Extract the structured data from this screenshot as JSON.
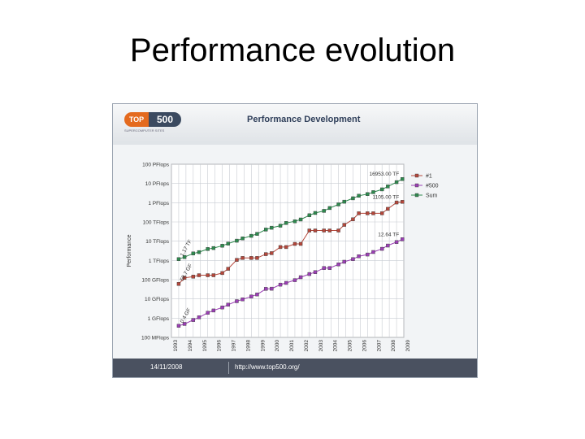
{
  "slide": {
    "title": "Performance evolution"
  },
  "header": {
    "logo_top": "TOP",
    "logo_num": "500",
    "logo_sub": "SUPERCOMPUTER SITES",
    "title": "Performance Development"
  },
  "footer": {
    "date": "14/11/2008",
    "url": "http://www.top500.org/"
  },
  "colors": {
    "n1": "#b5473b",
    "n500": "#9b3fb5",
    "sum": "#2f8a4f",
    "watermark": "#d6dbe2"
  },
  "chart_data": {
    "type": "line",
    "ylabel": "Performance",
    "y_scale": "log",
    "y_ticks": [
      {
        "value": 0.1,
        "label": "100 MFlops"
      },
      {
        "value": 1,
        "label": "1 GFlops"
      },
      {
        "value": 10,
        "label": "10 GFlops"
      },
      {
        "value": 100,
        "label": "100 GFlops"
      },
      {
        "value": 1000,
        "label": "1 TFlops"
      },
      {
        "value": 10000,
        "label": "10 TFlops"
      },
      {
        "value": 100000,
        "label": "100 TFlops"
      },
      {
        "value": 1000000,
        "label": "1 PFlops"
      },
      {
        "value": 10000000,
        "label": "10 PFlops"
      },
      {
        "value": 100000000,
        "label": "100 PFlops"
      }
    ],
    "ylim": [
      0.1,
      100000000
    ],
    "xlim": [
      1993,
      2009
    ],
    "x_ticks": [
      "1993",
      "1994",
      "1995",
      "1996",
      "1997",
      "1998",
      "1999",
      "2000",
      "2001",
      "2002",
      "2003",
      "2004",
      "2005",
      "2006",
      "2007",
      "2008",
      "2009"
    ],
    "grid": true,
    "legend": "right",
    "series": [
      {
        "name": "#1",
        "key": "n1",
        "points": [
          [
            1993.5,
            59.7
          ],
          [
            1993.9,
            124
          ],
          [
            1994.5,
            143
          ],
          [
            1994.9,
            170
          ],
          [
            1995.5,
            170
          ],
          [
            1995.9,
            170
          ],
          [
            1996.5,
            220
          ],
          [
            1996.9,
            368
          ],
          [
            1997.5,
            1068
          ],
          [
            1997.9,
            1338
          ],
          [
            1998.5,
            1338
          ],
          [
            1998.9,
            1338
          ],
          [
            1999.5,
            2121
          ],
          [
            1999.9,
            2379
          ],
          [
            2000.5,
            4938
          ],
          [
            2000.9,
            4938
          ],
          [
            2001.5,
            7226
          ],
          [
            2001.9,
            7226
          ],
          [
            2002.5,
            35860
          ],
          [
            2002.9,
            35860
          ],
          [
            2003.5,
            35860
          ],
          [
            2003.9,
            35860
          ],
          [
            2004.5,
            35860
          ],
          [
            2004.9,
            70720
          ],
          [
            2005.5,
            136800
          ],
          [
            2005.9,
            280600
          ],
          [
            2006.5,
            280600
          ],
          [
            2006.9,
            280600
          ],
          [
            2007.5,
            280600
          ],
          [
            2007.9,
            478200
          ],
          [
            2008.5,
            1026000
          ],
          [
            2008.9,
            1105000
          ]
        ]
      },
      {
        "name": "#500",
        "key": "n500",
        "points": [
          [
            1993.5,
            0.4
          ],
          [
            1993.9,
            0.5
          ],
          [
            1994.5,
            0.8
          ],
          [
            1994.9,
            1.1
          ],
          [
            1995.5,
            1.9
          ],
          [
            1995.9,
            2.5
          ],
          [
            1996.5,
            3.6
          ],
          [
            1996.9,
            5.0
          ],
          [
            1997.5,
            7.6
          ],
          [
            1997.9,
            9.5
          ],
          [
            1998.5,
            13.4
          ],
          [
            1998.9,
            17.1
          ],
          [
            1999.5,
            33.1
          ],
          [
            1999.9,
            33.9
          ],
          [
            2000.5,
            55.1
          ],
          [
            2000.9,
            67.8
          ],
          [
            2001.5,
            94.3
          ],
          [
            2001.9,
            134
          ],
          [
            2002.5,
            196
          ],
          [
            2002.9,
            245
          ],
          [
            2003.5,
            403
          ],
          [
            2003.9,
            403
          ],
          [
            2004.5,
            624
          ],
          [
            2004.9,
            851
          ],
          [
            2005.5,
            1166
          ],
          [
            2005.9,
            1646
          ],
          [
            2006.5,
            2026
          ],
          [
            2006.9,
            2737
          ],
          [
            2007.5,
            4005
          ],
          [
            2007.9,
            5929
          ],
          [
            2008.5,
            9000
          ],
          [
            2008.9,
            12640
          ]
        ]
      },
      {
        "name": "Sum",
        "key": "sum",
        "points": [
          [
            1993.5,
            1170
          ],
          [
            1993.9,
            1500
          ],
          [
            1994.5,
            2300
          ],
          [
            1994.9,
            2700
          ],
          [
            1995.5,
            3900
          ],
          [
            1995.9,
            4400
          ],
          [
            1996.5,
            5800
          ],
          [
            1996.9,
            7500
          ],
          [
            1997.5,
            10600
          ],
          [
            1997.9,
            14000
          ],
          [
            1998.5,
            19000
          ],
          [
            1998.9,
            24000
          ],
          [
            1999.5,
            40000
          ],
          [
            1999.9,
            50000
          ],
          [
            2000.5,
            64000
          ],
          [
            2000.9,
            88000
          ],
          [
            2001.5,
            108000
          ],
          [
            2001.9,
            134000
          ],
          [
            2002.5,
            222000
          ],
          [
            2002.9,
            293000
          ],
          [
            2003.5,
            375000
          ],
          [
            2003.9,
            528000
          ],
          [
            2004.5,
            813000
          ],
          [
            2004.9,
            1127000
          ],
          [
            2005.5,
            1690000
          ],
          [
            2005.9,
            2300000
          ],
          [
            2006.5,
            2790000
          ],
          [
            2006.9,
            3530000
          ],
          [
            2007.5,
            4920000
          ],
          [
            2007.9,
            6970000
          ],
          [
            2008.5,
            11700000
          ],
          [
            2008.9,
            16953000
          ]
        ]
      }
    ],
    "annotations": [
      {
        "text": "1.17 TF",
        "series": "sum"
      },
      {
        "text": "59.7 GF",
        "series": "n1"
      },
      {
        "text": "0.4 GF",
        "series": "n500"
      },
      {
        "text": "16953.00 TF",
        "series": "sum"
      },
      {
        "text": "1105.00 TF",
        "series": "n1"
      },
      {
        "text": "12.64 TF",
        "series": "n500"
      }
    ]
  }
}
